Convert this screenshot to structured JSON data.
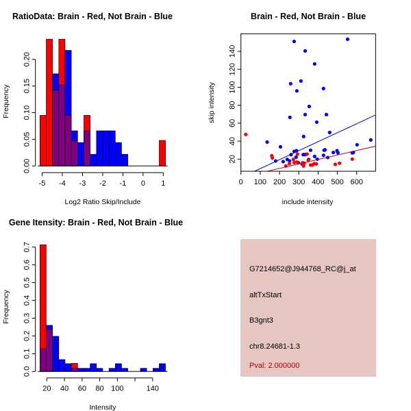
{
  "colors": {
    "red": "#ff0000",
    "blue": "#0000ff",
    "overlap": "#7f007f",
    "panel_bg": "#e6c6c0",
    "pval_text": "#aa0000"
  },
  "chart_data": [
    {
      "type": "bar",
      "subtype": "overlaid-histogram",
      "title": "RatioData: Brain - Red, Not Brain - Blue",
      "xlabel": "Log2 Ratio Skip/Include",
      "ylabel": "Frequency",
      "xlim": [
        -5.11,
        1.11
      ],
      "ylim": [
        0,
        0.24
      ],
      "xticks": [
        "-5",
        "-4",
        "-3",
        "-2",
        "-1",
        "0",
        "1"
      ],
      "xtick_values": [
        -5,
        -4,
        -3,
        -2,
        -1,
        0,
        1
      ],
      "yticks": [
        "0.00",
        "0.05",
        "0.10",
        "0.15",
        "0.20"
      ],
      "ytick_values": [
        0,
        0.05,
        0.1,
        0.15,
        0.2
      ],
      "bin_start": -5.11,
      "bin_width": 0.311,
      "series": [
        {
          "name": "Not Brain",
          "color": "blue",
          "values": [
            0,
            0,
            0.173,
            0.152,
            0.217,
            0.066,
            0.044,
            0.066,
            0.022,
            0.066,
            0.066,
            0.066,
            0.044,
            0.022,
            0,
            0,
            0,
            0,
            0,
            0
          ]
        },
        {
          "name": "Brain",
          "color": "red",
          "values": [
            0.095,
            0.238,
            0.142,
            0.238,
            0.095,
            0.047,
            0,
            0.095,
            0,
            0,
            0,
            0,
            0,
            0,
            0,
            0,
            0,
            0,
            0,
            0.048
          ]
        }
      ]
    },
    {
      "type": "scatter",
      "title": "Brain - Red, Not Brain - Blue",
      "xlabel": "include intensity",
      "ylabel": "skip intensity",
      "xlim": [
        0,
        698
      ],
      "ylim": [
        6.5,
        159.6
      ],
      "xticks": [
        "0",
        "100",
        "200",
        "300",
        "400",
        "500",
        "600"
      ],
      "xtick_values": [
        0,
        100,
        200,
        300,
        400,
        500,
        600
      ],
      "yticks": [
        "20",
        "40",
        "60",
        "80",
        "100",
        "120",
        "140"
      ],
      "ytick_values": [
        20,
        40,
        60,
        80,
        100,
        120,
        140
      ],
      "series": [
        {
          "name": "Not Brain",
          "color": "blue",
          "points": [
            [
              276,
              151
            ],
            [
              553,
              153.5
            ],
            [
              333,
              140.5
            ],
            [
              382,
              126
            ],
            [
              311,
              107
            ],
            [
              258,
              104
            ],
            [
              428,
              98.6
            ],
            [
              290,
              96
            ],
            [
              354,
              78.7
            ],
            [
              254,
              66.5
            ],
            [
              333,
              69.6
            ],
            [
              443,
              69.6
            ],
            [
              393,
              61.2
            ],
            [
              460,
              49.7
            ],
            [
              325,
              45.2
            ],
            [
              136,
              39
            ],
            [
              673,
              41.4
            ],
            [
              205,
              33.7
            ],
            [
              602,
              36
            ],
            [
              276,
              28.6
            ],
            [
              288,
              29.4
            ],
            [
              361,
              29.9
            ],
            [
              431,
              29.9
            ],
            [
              436,
              30.4
            ],
            [
              260,
              25
            ],
            [
              323,
              25
            ],
            [
              337,
              25.3
            ],
            [
              479,
              27.4
            ],
            [
              498,
              29.4
            ],
            [
              503,
              27
            ],
            [
              428,
              24.3
            ],
            [
              583,
              27.4
            ],
            [
              577,
              27
            ],
            [
              180,
              18
            ],
            [
              219,
              17.2
            ],
            [
              240,
              19.7
            ],
            [
              252,
              18
            ],
            [
              286,
              22.3
            ],
            [
              298,
              16
            ],
            [
              351,
              19.7
            ],
            [
              396,
              20
            ],
            [
              450,
              21.8
            ],
            [
              382,
              23
            ],
            [
              317,
              14.7
            ],
            [
              331,
              25
            ]
          ],
          "fit": {
            "slope": 0.1,
            "intercept": -0.6
          }
        },
        {
          "name": "Brain",
          "color": "red",
          "points": [
            [
              25,
              47.5
            ],
            [
              160,
              23.8
            ],
            [
              163,
              21.3
            ],
            [
              233,
              12.4
            ],
            [
              251,
              15
            ],
            [
              272,
              19.7
            ],
            [
              276,
              16.2
            ],
            [
              293,
              25.6
            ],
            [
              290,
              16.7
            ],
            [
              320,
              16
            ],
            [
              325,
              12.4
            ],
            [
              328,
              15.4
            ],
            [
              343,
              25.6
            ],
            [
              349,
              18.7
            ],
            [
              361,
              13.4
            ],
            [
              370,
              13.4
            ],
            [
              380,
              15
            ],
            [
              391,
              14.7
            ],
            [
              489,
              14.2
            ],
            [
              511,
              15.4
            ],
            [
              577,
              20
            ]
          ],
          "fit": {
            "slope": 0.0498,
            "intercept": -0.3
          }
        }
      ]
    },
    {
      "type": "bar",
      "subtype": "overlaid-histogram",
      "title": "Gene Itensity: Brain - Red, Not Brain - Blue",
      "xlabel": "Intensity",
      "ylabel": "Frequency",
      "xlim": [
        12.2,
        154.6
      ],
      "ylim": [
        0,
        0.72
      ],
      "xticks": [
        "20",
        "40",
        "60",
        "80",
        "100",
        "",
        "140"
      ],
      "xtick_values": [
        20,
        40,
        60,
        80,
        100,
        120,
        140
      ],
      "yticks": [
        "0.0",
        "0.1",
        "0.2",
        "0.3",
        "0.4",
        "0.5",
        "0.6",
        "0.7"
      ],
      "ytick_values": [
        0,
        0.1,
        0.2,
        0.3,
        0.4,
        0.5,
        0.6,
        0.7
      ],
      "bin_start": 12.2,
      "bin_width": 7.12,
      "series": [
        {
          "name": "Not Brain",
          "color": "blue",
          "values": [
            0.128,
            0.26,
            0.198,
            0.067,
            0.044,
            0.018,
            0.018,
            0.018,
            0.044,
            0.018,
            0,
            0.018,
            0.044,
            0.018,
            0,
            0,
            0.018,
            0,
            0.018,
            0.044
          ]
        },
        {
          "name": "Brain",
          "color": "red",
          "values": [
            0.713,
            0.236,
            0,
            0,
            0,
            0.046,
            0,
            0,
            0,
            0,
            0,
            0,
            0,
            0,
            0,
            0,
            0,
            0,
            0,
            0
          ]
        }
      ]
    }
  ],
  "info_panel": {
    "probe_id": "G7214652@J944768_RC@j_at",
    "event_type": "altTxStart",
    "gene": "B3gnt3",
    "location": "chr8.24681-1.3",
    "pval": "Pval: 2.000000"
  }
}
